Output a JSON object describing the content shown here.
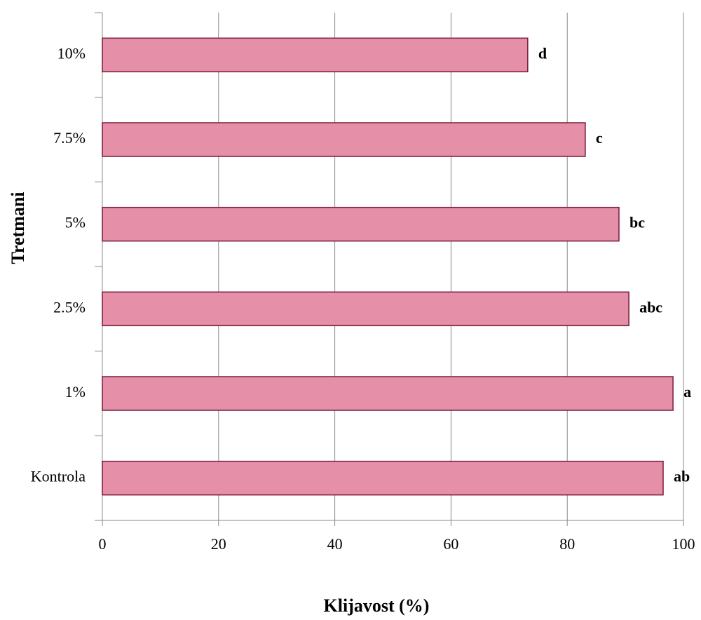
{
  "chart_data": {
    "type": "bar",
    "orientation": "horizontal",
    "x_label": "Klijavost (%)",
    "y_label": "Tretmani",
    "categories": [
      "Kontrola",
      "1%",
      "2.5%",
      "5%",
      "7.5%",
      "10%"
    ],
    "values": [
      96.5,
      98.2,
      90.6,
      88.9,
      83.1,
      73.2
    ],
    "annotations": [
      "ab",
      "a",
      "abc",
      "bc",
      "c",
      "d"
    ],
    "color": "#e68fa8",
    "edge_color": "#7a1a3a",
    "xlim": [
      0,
      100
    ],
    "xticks": [
      0,
      20,
      40,
      60,
      80,
      100
    ],
    "grid": true
  }
}
